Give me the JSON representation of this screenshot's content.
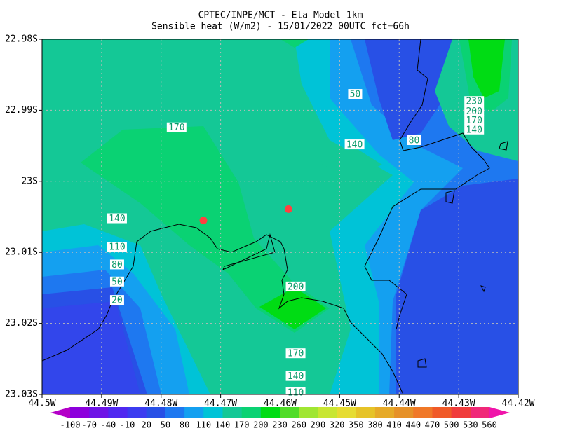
{
  "title": "CPTEC/INPE/MCT -  Eta Model 1km",
  "subtitle": "Sensible heat (W/m2) - 15/01/2022 00UTC fct=66h",
  "map": {
    "type": "contour",
    "xlim": [
      -44.5,
      -44.42
    ],
    "ylim": [
      -23.03,
      -22.98
    ],
    "grid": true,
    "xticks": [
      {
        "value": -44.5,
        "label": "44.5W"
      },
      {
        "value": -44.49,
        "label": "44.49W"
      },
      {
        "value": -44.48,
        "label": "44.48W"
      },
      {
        "value": -44.47,
        "label": "44.47W"
      },
      {
        "value": -44.46,
        "label": "44.46W"
      },
      {
        "value": -44.45,
        "label": "44.45W"
      },
      {
        "value": -44.44,
        "label": "44.44W"
      },
      {
        "value": -44.43,
        "label": "44.43W"
      },
      {
        "value": -44.42,
        "label": "44.42W"
      }
    ],
    "yticks": [
      {
        "value": -22.98,
        "label": "22.98S"
      },
      {
        "value": -22.99,
        "label": "22.99S"
      },
      {
        "value": -23.0,
        "label": "23S"
      },
      {
        "value": -23.01,
        "label": "23.01S"
      },
      {
        "value": -23.02,
        "label": "23.02S"
      },
      {
        "value": -23.03,
        "label": "23.03S"
      }
    ],
    "contour_labels": [
      {
        "value": 170,
        "lon": -44.4774,
        "lat": -22.9924
      },
      {
        "value": 50,
        "lon": -44.4474,
        "lat": -22.9877
      },
      {
        "value": 140,
        "lon": -44.4475,
        "lat": -22.9948
      },
      {
        "value": 80,
        "lon": -44.4375,
        "lat": -22.9942
      },
      {
        "value": 230,
        "lon": -44.4274,
        "lat": -22.9887
      },
      {
        "value": 200,
        "lon": -44.4274,
        "lat": -22.9901
      },
      {
        "value": 170,
        "lon": -44.4274,
        "lat": -22.9914
      },
      {
        "value": 140,
        "lon": -44.4274,
        "lat": -22.9927
      },
      {
        "value": 140,
        "lon": -44.4874,
        "lat": -23.0052
      },
      {
        "value": 110,
        "lon": -44.4874,
        "lat": -23.0092
      },
      {
        "value": 80,
        "lon": -44.4874,
        "lat": -23.0117
      },
      {
        "value": 50,
        "lon": -44.4874,
        "lat": -23.0141
      },
      {
        "value": 20,
        "lon": -44.4874,
        "lat": -23.0167
      },
      {
        "value": 200,
        "lon": -44.4574,
        "lat": -23.0148
      },
      {
        "value": 170,
        "lon": -44.4574,
        "lat": -23.0242
      },
      {
        "value": 140,
        "lon": -44.4574,
        "lat": -23.0274
      },
      {
        "value": 110,
        "lon": -44.4574,
        "lat": -23.0297
      }
    ],
    "points": [
      {
        "lon": -44.4729,
        "lat": -23.0055,
        "color": "#ff4040"
      },
      {
        "lon": -44.4586,
        "lat": -23.0039,
        "color": "#ff4040"
      }
    ]
  },
  "colorbar": {
    "levels": [
      -100,
      -70,
      -40,
      -10,
      20,
      50,
      80,
      110,
      140,
      170,
      200,
      230,
      260,
      290,
      320,
      350,
      380,
      410,
      440,
      470,
      500,
      530,
      560
    ],
    "colors": [
      "#b400c8",
      "#8c00dc",
      "#6e14e6",
      "#5028f0",
      "#3c3cf0",
      "#2850e6",
      "#1e78f0",
      "#14a0f0",
      "#00c3d7",
      "#14c896",
      "#0ad273",
      "#00dc14",
      "#50dc28",
      "#a0e632",
      "#c8e632",
      "#e6dc32",
      "#e6c328",
      "#e6aa28",
      "#e69128",
      "#f07828",
      "#f05a28",
      "#f03c3c",
      "#f02878",
      "#f014aa"
    ]
  }
}
